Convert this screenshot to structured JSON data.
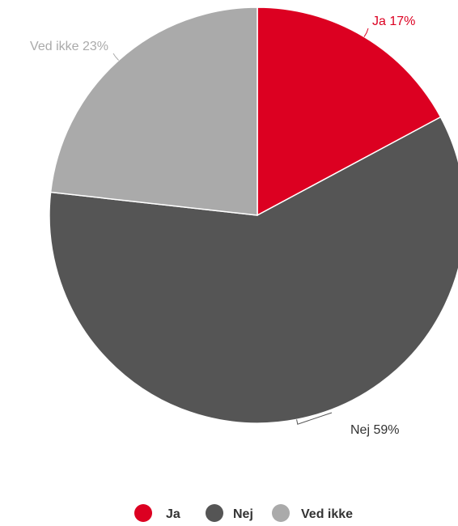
{
  "chart_data": {
    "type": "pie",
    "series": [
      {
        "name": "Ja",
        "value": 17,
        "label": "Ja 17%",
        "color": "#dc0021"
      },
      {
        "name": "Nej",
        "value": 59,
        "label": "Nej 59%",
        "color": "#555555"
      },
      {
        "name": "Ved ikke",
        "value": 23,
        "label": "Ved ikke 23%",
        "color": "#aaaaaa"
      }
    ],
    "start_angle": "12 o'clock",
    "direction": "clockwise",
    "legend_position": "bottom-center",
    "legend": [
      "Ja",
      "Nej",
      "Ved ikke"
    ]
  }
}
